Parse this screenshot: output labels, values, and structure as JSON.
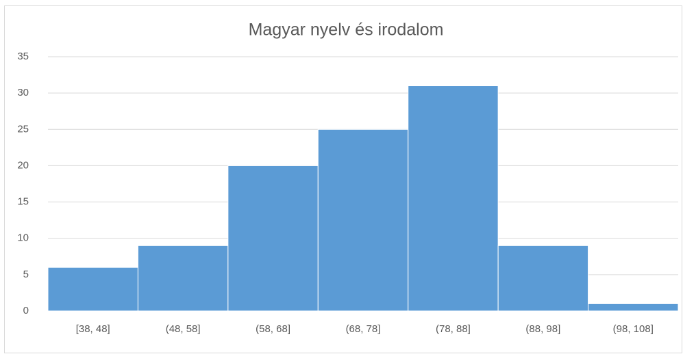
{
  "chart_data": {
    "type": "bar",
    "title": "Magyar nyelv és irodalom",
    "categories": [
      "[38, 48]",
      "(48, 58]",
      "(58, 68]",
      "(68, 78]",
      "(78, 88]",
      "(88, 98]",
      "(98, 108]"
    ],
    "values": [
      6,
      9,
      20,
      25,
      31,
      9,
      1
    ],
    "color": "#5b9bd5",
    "ylim": [
      0,
      35
    ],
    "yticks": [
      0,
      5,
      10,
      15,
      20,
      25,
      30,
      35
    ],
    "grid": true
  }
}
